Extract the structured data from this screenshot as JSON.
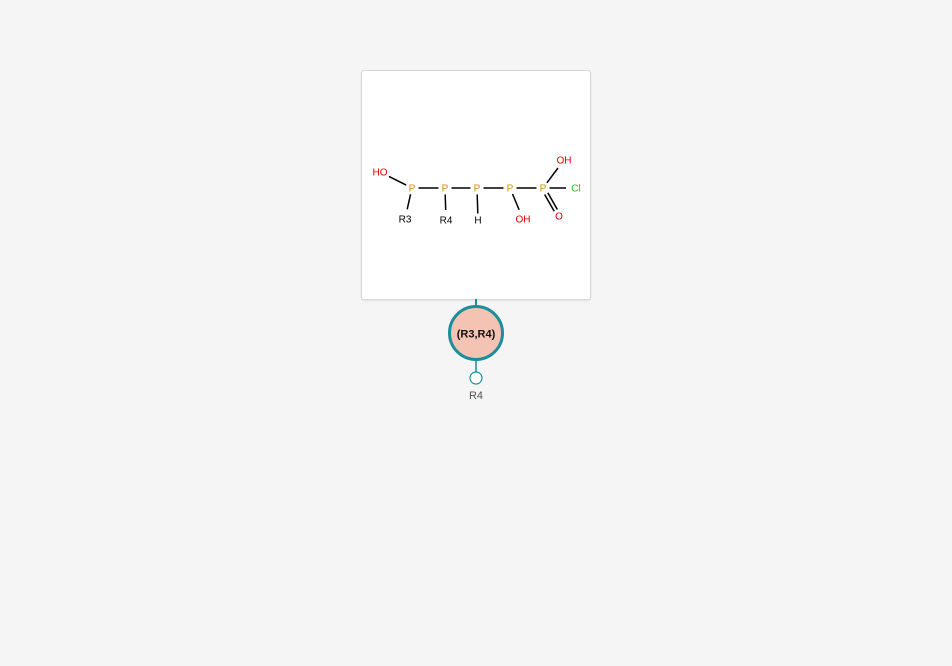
{
  "colors": {
    "background": "#f5f5f5",
    "card": "#ffffff",
    "card_border": "#d6d6d6",
    "bond": "#000000",
    "phosphorus": "#e08a00",
    "oxygen": "#e00000",
    "chlorine": "#22bb22",
    "plain_atom": "#000000",
    "node_fill": "#f4c3b3",
    "node_stroke": "#1a8e9c",
    "connector": "#1a8e9c"
  },
  "molecule": {
    "atoms": [
      {
        "id": "p1",
        "text": "P",
        "element": "P"
      },
      {
        "id": "p2",
        "text": "P",
        "element": "P"
      },
      {
        "id": "p3",
        "text": "P",
        "element": "P"
      },
      {
        "id": "p4",
        "text": "P",
        "element": "P"
      },
      {
        "id": "p5",
        "text": "P",
        "element": "P"
      },
      {
        "id": "ho1",
        "text": "HO",
        "element": "O"
      },
      {
        "id": "r3",
        "text": "R3",
        "element": "R"
      },
      {
        "id": "r4",
        "text": "R4",
        "element": "R"
      },
      {
        "id": "h1",
        "text": "H",
        "element": "H"
      },
      {
        "id": "oh2",
        "text": "OH",
        "element": "O"
      },
      {
        "id": "oh1",
        "text": "OH",
        "element": "O"
      },
      {
        "id": "cl1",
        "text": "Cl",
        "element": "Cl"
      },
      {
        "id": "o1",
        "text": "O",
        "element": "O"
      }
    ],
    "bonds": [
      {
        "from": "p1",
        "to": "p2",
        "order": 1
      },
      {
        "from": "p2",
        "to": "p3",
        "order": 1
      },
      {
        "from": "p3",
        "to": "p4",
        "order": 1
      },
      {
        "from": "p4",
        "to": "p5",
        "order": 1
      },
      {
        "from": "p1",
        "to": "ho1",
        "order": 1
      },
      {
        "from": "p1",
        "to": "r3",
        "order": 1
      },
      {
        "from": "p2",
        "to": "r4",
        "order": 1
      },
      {
        "from": "p3",
        "to": "h1",
        "order": 1
      },
      {
        "from": "p4",
        "to": "oh2",
        "order": 1
      },
      {
        "from": "p5",
        "to": "oh1",
        "order": 1
      },
      {
        "from": "p5",
        "to": "cl1",
        "order": 1
      },
      {
        "from": "p5",
        "to": "o1",
        "order": 2
      }
    ]
  },
  "tree": {
    "node_label": "(R3,R4)",
    "leaf_label": "R4"
  }
}
